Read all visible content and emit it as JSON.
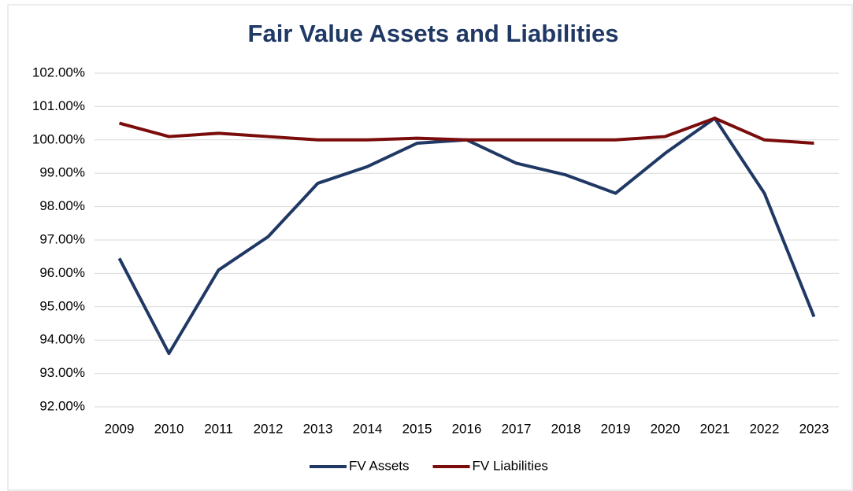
{
  "chart_data": {
    "type": "line",
    "title": "Fair Value Assets and Liabilities",
    "categories": [
      "2009",
      "2010",
      "2011",
      "2012",
      "2013",
      "2014",
      "2015",
      "2016",
      "2017",
      "2018",
      "2019",
      "2020",
      "2021",
      "2022",
      "2023"
    ],
    "series": [
      {
        "name": "FV Assets",
        "color": "#203864",
        "values": [
          96.45,
          93.6,
          96.1,
          97.1,
          98.7,
          99.2,
          99.9,
          100.0,
          99.3,
          98.95,
          98.4,
          99.6,
          100.65,
          98.4,
          94.7
        ]
      },
      {
        "name": "FV Liabilities",
        "color": "#7b0c0c",
        "values": [
          100.5,
          100.1,
          100.2,
          100.1,
          100.0,
          100.0,
          100.05,
          100.0,
          100.0,
          100.0,
          100.0,
          100.1,
          100.65,
          100.0,
          99.9
        ]
      }
    ],
    "ylim": [
      92,
      102
    ],
    "yticks": [
      {
        "value": 92,
        "label": "92.00%"
      },
      {
        "value": 93,
        "label": "93.00%"
      },
      {
        "value": 94,
        "label": "94.00%"
      },
      {
        "value": 95,
        "label": "95.00%"
      },
      {
        "value": 96,
        "label": "96.00%"
      },
      {
        "value": 97,
        "label": "97.00%"
      },
      {
        "value": 98,
        "label": "98.00%"
      },
      {
        "value": 99,
        "label": "99.00%"
      },
      {
        "value": 100,
        "label": "100.00%"
      },
      {
        "value": 101,
        "label": "101.00%"
      },
      {
        "value": 102,
        "label": "102.00%"
      }
    ],
    "grid": true,
    "legend": "bottom"
  }
}
